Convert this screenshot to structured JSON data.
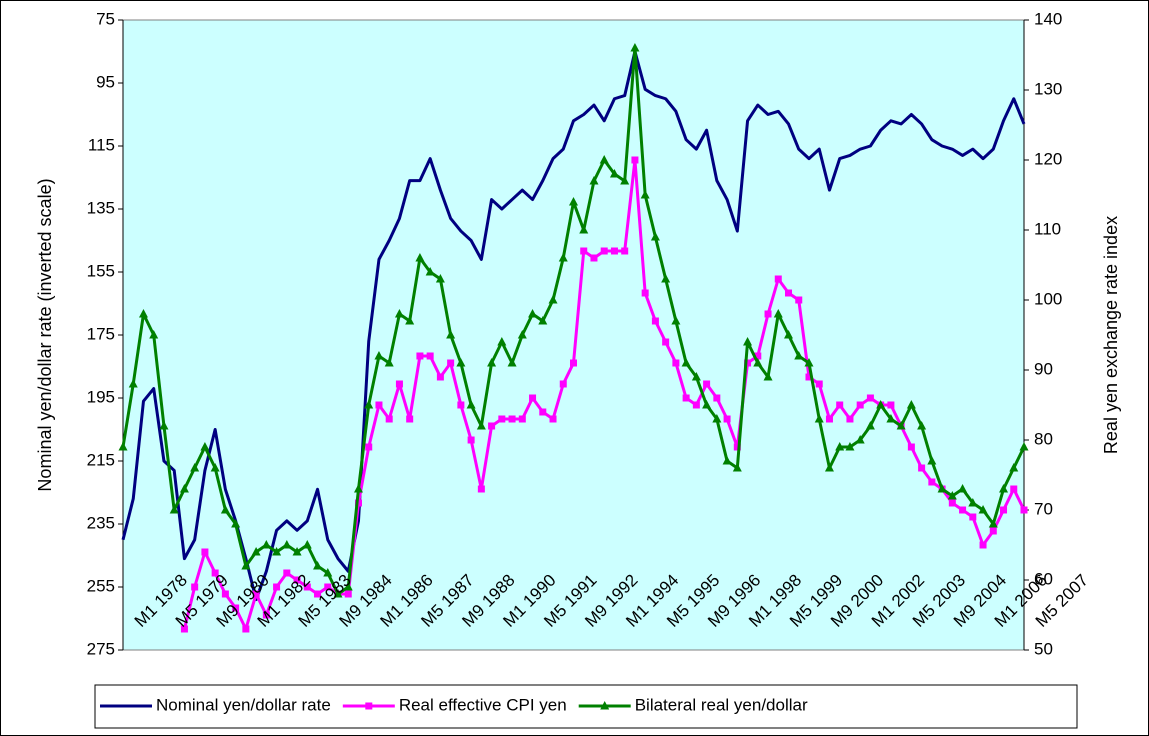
{
  "chart_data": {
    "type": "line",
    "y_label": "Nominal yen/dollar rate (inverted scale)",
    "y2_label": "Real yen exchange rate index",
    "categories": [
      "M1 1978",
      null,
      null,
      null,
      "M5 1979",
      null,
      null,
      null,
      "M9 1980",
      null,
      null,
      null,
      "M1 1982",
      null,
      null,
      null,
      "M5 1983",
      null,
      null,
      null,
      "M9 1984",
      null,
      null,
      null,
      "M1 1986",
      null,
      null,
      null,
      "M5 1987",
      null,
      null,
      null,
      "M9 1988",
      null,
      null,
      null,
      "M1 1990",
      null,
      null,
      null,
      "M5 1991",
      null,
      null,
      null,
      "M9 1992",
      null,
      null,
      null,
      "M1 1994",
      null,
      null,
      null,
      "M5 1995",
      null,
      null,
      null,
      "M9 1996",
      null,
      null,
      null,
      "M1 1998",
      null,
      null,
      null,
      "M5 1999",
      null,
      null,
      null,
      "M9 2000",
      null,
      null,
      null,
      "M1 2002",
      null,
      null,
      null,
      "M5 2003",
      null,
      null,
      null,
      "M9 2004",
      null,
      null,
      null,
      "M1 2006",
      null,
      null,
      null,
      "M5 2007"
    ],
    "ylim": [
      75,
      275
    ],
    "y_inverted": true,
    "yticks": [
      75,
      95,
      115,
      135,
      155,
      175,
      195,
      215,
      235,
      255,
      275
    ],
    "y2lim": [
      50,
      140
    ],
    "y2ticks": [
      50,
      60,
      70,
      80,
      90,
      100,
      110,
      120,
      130,
      140
    ],
    "background": "#ccffff",
    "legend": "bottom",
    "series": [
      {
        "name": "Nominal yen/dollar rate",
        "color": "#000080",
        "marker": "none",
        "values": [
          240,
          227,
          196,
          192,
          215,
          218,
          246,
          240,
          218,
          205,
          224,
          234,
          246,
          259,
          250,
          237,
          234,
          237,
          234,
          224,
          240,
          246,
          250,
          234,
          177,
          151,
          145,
          138,
          126,
          126,
          119,
          129,
          138,
          142,
          145,
          151,
          132,
          135,
          132,
          129,
          132,
          126,
          119,
          116,
          107,
          105,
          102,
          107,
          100,
          99,
          85,
          97,
          99,
          100,
          104,
          113,
          116,
          110,
          126,
          132,
          142,
          107,
          102,
          105,
          104,
          108,
          116,
          119,
          116,
          129,
          119,
          118,
          116,
          115,
          110,
          107,
          108,
          105,
          108,
          113,
          115,
          116,
          118,
          116,
          119,
          116,
          107,
          100,
          108
        ]
      },
      {
        "name": "Real effective CPI yen",
        "color": "#ff00ff",
        "marker": "square",
        "axis": "y2",
        "values": [
          null,
          null,
          null,
          null,
          null,
          null,
          53,
          59,
          64,
          61,
          58,
          56,
          53,
          58,
          55,
          59,
          61,
          60,
          59,
          58,
          59,
          58,
          58,
          71,
          79,
          85,
          83,
          88,
          83,
          92,
          92,
          89,
          91,
          85,
          80,
          73,
          82,
          83,
          83,
          83,
          86,
          84,
          83,
          88,
          91,
          107,
          106,
          107,
          107,
          107,
          120,
          101,
          97,
          94,
          91,
          86,
          85,
          88,
          86,
          83,
          79,
          91,
          92,
          98,
          103,
          101,
          100,
          89,
          88,
          83,
          85,
          83,
          85,
          86,
          85,
          85,
          82,
          79,
          76,
          74,
          73,
          71,
          70,
          69,
          65,
          67,
          70,
          73,
          70
        ]
      },
      {
        "name": "Bilateral real yen/dollar",
        "color": "#008000",
        "marker": "triangle",
        "axis": "y2",
        "values": [
          79,
          88,
          98,
          95,
          82,
          70,
          73,
          76,
          79,
          76,
          70,
          68,
          62,
          64,
          65,
          64,
          65,
          64,
          65,
          62,
          61,
          58,
          59,
          73,
          85,
          92,
          91,
          98,
          97,
          106,
          104,
          103,
          95,
          91,
          85,
          82,
          91,
          94,
          91,
          95,
          98,
          97,
          100,
          106,
          114,
          110,
          117,
          120,
          118,
          117,
          136,
          115,
          109,
          103,
          97,
          91,
          89,
          85,
          83,
          77,
          76,
          94,
          91,
          89,
          98,
          95,
          92,
          91,
          83,
          76,
          79,
          79,
          80,
          82,
          85,
          83,
          82,
          85,
          82,
          77,
          73,
          72,
          73,
          71,
          70,
          68,
          73,
          76,
          79
        ]
      }
    ]
  }
}
